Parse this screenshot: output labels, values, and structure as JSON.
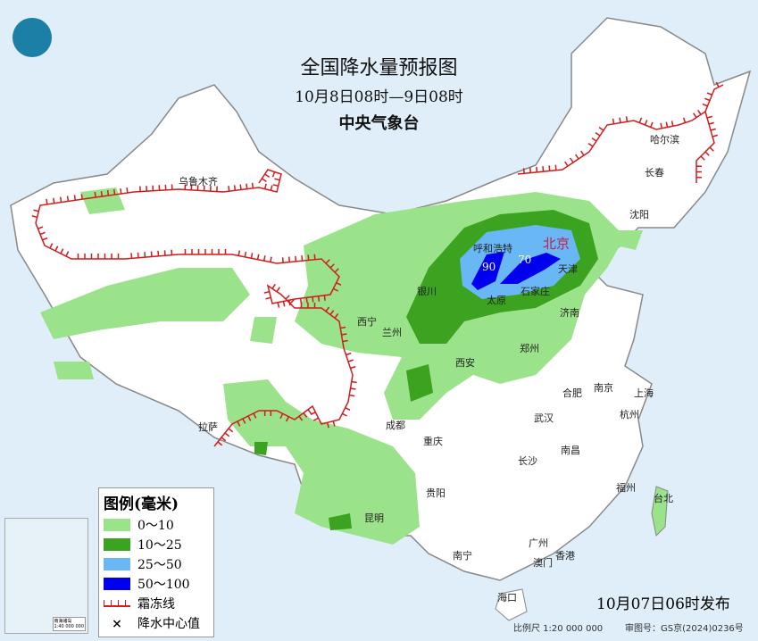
{
  "header": {
    "title": "全国降水量预报图",
    "period": "10月8日08时—9日08时",
    "issuer": "中央气象台"
  },
  "logo": {
    "icon": "cma-logo-icon"
  },
  "legend": {
    "title": "图例(毫米)",
    "items": [
      {
        "label": "0～10",
        "color": "#9be38a"
      },
      {
        "label": "10～25",
        "color": "#3ca321"
      },
      {
        "label": "25～50",
        "color": "#69b8f5"
      },
      {
        "label": "50～100",
        "color": "#0000ee"
      },
      {
        "label": "霜冻线",
        "color": "#d01c1c"
      },
      {
        "label": "降水中心值",
        "symbol": "×"
      }
    ]
  },
  "rain_centers": [
    "90",
    "70"
  ],
  "cities": [
    "乌鲁木齐",
    "哈尔滨",
    "长春",
    "沈阳",
    "呼和浩特",
    "北京",
    "天津",
    "太原",
    "石家庄",
    "银川",
    "西宁",
    "兰州",
    "济南",
    "郑州",
    "西安",
    "南京",
    "合肥",
    "上海",
    "杭州",
    "武汉",
    "成都",
    "重庆",
    "拉萨",
    "长沙",
    "南昌",
    "贵阳",
    "昆明",
    "福州",
    "台北",
    "南宁",
    "广州",
    "香港",
    "澳门",
    "海口"
  ],
  "inset": {
    "scale": "1:40 000 000",
    "label": "南海诸岛"
  },
  "footer": {
    "issued": "10月07日06时发布",
    "scale": "比例尺 1:20 000 000",
    "review": "审图号：GS京(2024)0236号"
  }
}
